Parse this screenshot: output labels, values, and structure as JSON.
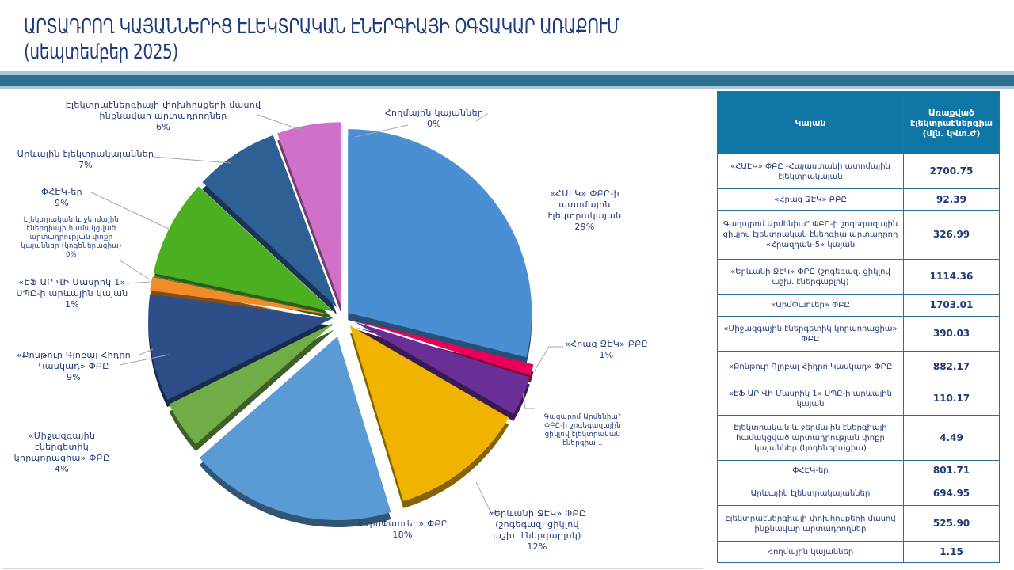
{
  "title": {
    "line1": "ԱՐՏԱԴՐՈՂ ԿԱՅԱՆՆԵՐԻՑ ԷԼԵԿՏՐԱԿԱՆ ԷՆԵՐԳԻԱՅԻ ՕԳՏԱԿԱՐ ԱՌԱՔՈՒՄ",
    "line2": "(սեպտեմբեր 2025)"
  },
  "table": {
    "headers": [
      "Կայան",
      "Առաքված էլեկտրաէներգիա (մլն. կՎտ.ժ)"
    ],
    "rows": [
      {
        "name": "«ՀԱԷԿ» ՓԲԸ -Հայաստանի ատոմային էլեկտրակայան",
        "value": "2700.75"
      },
      {
        "name": "«Հրազ ՋԷԿ» ԲԲԸ",
        "value": "92.39"
      },
      {
        "name": "Գազպրոմ Արմենիա\" ՓԲԸ-ի շոգեգազային ցիկլով էլեկտրական էներգիա արտադրող «Հրազդան-5» կայան",
        "value": "326.99"
      },
      {
        "name": "«Երևանի ՋԷԿ» ՓԲԸ (շոգեգազ. ցիկլով աշխ. էներգաբլոկ)",
        "value": "1114.36"
      },
      {
        "name": "«ԱրմՓաուեր» ՓԲԸ",
        "value": "1703.01"
      },
      {
        "name": "«Միջազգային էներգետիկ կորպորացիա» ՓԲԸ",
        "value": "390.03"
      },
      {
        "name": "«Քոնթուր Գլոբալ Հիդրո Կասկադ» ՓԲԸ",
        "value": "882.17"
      },
      {
        "name": "«ԷՖ ԱՐ ՎԻ Մասրիկ 1» ՍՊԸ-ի արևային կայան",
        "value": "110.17"
      },
      {
        "name": "Էլեկտրական և ջերմային էներգիայի համակցված արտադրության փոքր կայաններ (կոգեներացիա)",
        "value": "4.49"
      },
      {
        "name": "ՓՀԷԿ-եր",
        "value": "801.71"
      },
      {
        "name": "Արևային էլեկտրակայաններ",
        "value": "694.95"
      },
      {
        "name": "Էլեկտրաէներգիայի փոխհոսքերի մասով ինքնավար արտադրողներ",
        "value": "525.90"
      },
      {
        "name": "Հողմային կայաններ",
        "value": "1.15"
      }
    ]
  },
  "chart_data": {
    "type": "pie",
    "style": "3d-exploded",
    "categories": [
      "«ՀԱԷԿ» ՓԲԸ-ի ատոմային էլեկտրակայան",
      "«Հրազ ՋԷԿ» ԲԲԸ",
      "Գազպրոմ Արմենիա\" ՓԲԸ-ի շոգեգազային ցիկլով էլեկտրական էներգիա…",
      "«Երևանի ՋԷԿ» ՓԲԸ (շոգեգազ. ցիկլով աշխ. էներգաբլոկ)",
      "«ԱրմՓաուեր» ՓԲԸ",
      "«Միջազգային էներգետիկ կորպորացիա» ՓԲԸ",
      "«Քոնթուր Գլոբալ Հիդրո Կասկադ» ՓԲԸ",
      "«ԷՖ ԱՐ ՎԻ Մասրիկ 1» ՍՊԸ-ի արևային կայան",
      "Էլեկտրական և ջերմային էներգիայի համակցված արտադրության փոքր կայաններ (կոգեներացիա)",
      "ՓՀԷԿ-եր",
      "Արևային էլեկտրակայաններ",
      "Էլեկտրաէներգիայի փոխհոսքերի մասով ինքնավար արտադրողներ",
      "Հողմային կայաններ"
    ],
    "values": [
      2700.75,
      92.39,
      326.99,
      1114.36,
      1703.01,
      390.03,
      882.17,
      110.17,
      4.49,
      801.71,
      694.95,
      525.9,
      1.15
    ],
    "percent_labels": [
      "29%",
      "1%",
      "",
      "12%",
      "18%",
      "4%",
      "9%",
      "1%",
      "0%",
      "9%",
      "7%",
      "6%",
      "0%"
    ],
    "colors": [
      "#4a8fd4",
      "#e8005a",
      "#6a2f96",
      "#f0b400",
      "#5b9bd5",
      "#70ad47",
      "#2e4e8a",
      "#f28c28",
      "#a0a0a0",
      "#4caf22",
      "#2e6096",
      "#d070c8",
      "#8fb8e0"
    ]
  }
}
